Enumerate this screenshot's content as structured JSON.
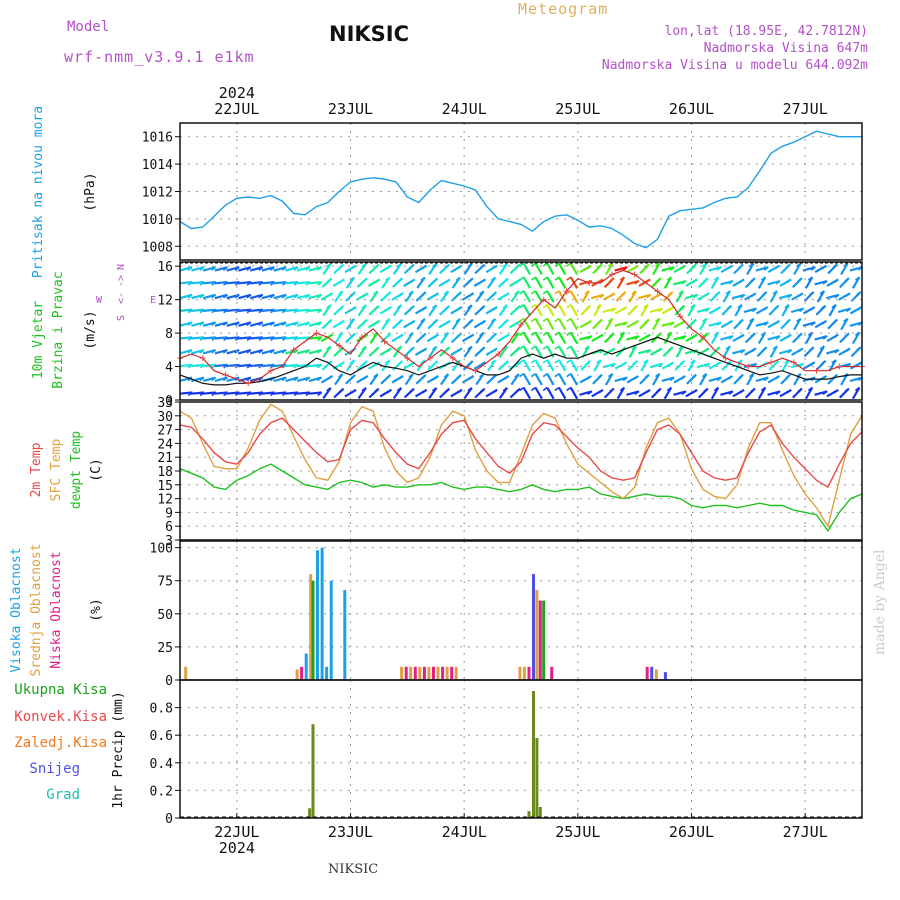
{
  "header": {
    "model_label": "Model",
    "model_name": "wrf-nmm_v3.9.1 e1km",
    "station": "NIKSIC",
    "title": "Meteogram",
    "location_line1": "lon,lat (18.95E, 42.7812N)",
    "location_line2": "Nadmorska Visina 647m",
    "location_line3": "Nadmorska Visina u modelu 644.092m",
    "footer_station": "NIKSIC",
    "signature": "made by Angel"
  },
  "colors": {
    "pressure": "#1ea0e6",
    "wind_label": "#20c020",
    "temp_2m": "#e84a4a",
    "temp_sfc": "#e0a040",
    "dewpoint": "#20c020",
    "cloud_high": "#1ea0e6",
    "cloud_mid": "#e0a040",
    "cloud_low": "#e0208a",
    "precip_total": "#20a020",
    "precip_conv": "#e84a4a",
    "precip_frozen": "#f07a20",
    "snow": "#5050e0",
    "hail": "#20c0b0",
    "axis_label": "#111111",
    "grid": "#999999",
    "purple": "#b450c8"
  },
  "chart_data": [
    {
      "type": "line",
      "name": "pressure",
      "ylabel": "Pritisak na nivou mora",
      "unit": "(hPa)",
      "ylim": [
        1007,
        1017
      ],
      "yticks": [
        1008,
        1010,
        1012,
        1014,
        1016
      ],
      "x": [
        0,
        0.1,
        0.2,
        0.3,
        0.4,
        0.5,
        0.6,
        0.7,
        0.8,
        0.9,
        1.0,
        1.1,
        1.2,
        1.3,
        1.4,
        1.5,
        1.6,
        1.7,
        1.8,
        1.9,
        2.0,
        2.1,
        2.2,
        2.3,
        2.4,
        2.5,
        2.6,
        2.7,
        2.8,
        2.9,
        3.0,
        3.1,
        3.2,
        3.3,
        3.4,
        3.5,
        3.6,
        3.7,
        3.8,
        3.9,
        4.0,
        4.1,
        4.2,
        4.3,
        4.4,
        4.5,
        4.6,
        4.7,
        4.8,
        4.9,
        5.0,
        5.1,
        5.2,
        5.3,
        5.4,
        5.5,
        5.6,
        5.7,
        5.8,
        5.9,
        6.0
      ],
      "values": [
        1009.8,
        1009.3,
        1009.4,
        1010.2,
        1011.0,
        1011.5,
        1011.6,
        1011.5,
        1011.7,
        1011.3,
        1010.4,
        1010.3,
        1010.9,
        1011.2,
        1012.0,
        1012.7,
        1012.9,
        1013.0,
        1012.9,
        1012.7,
        1011.6,
        1011.2,
        1012.1,
        1012.8,
        1012.6,
        1012.4,
        1012.1,
        1010.9,
        1010.0,
        1009.8,
        1009.6,
        1009.1,
        1009.8,
        1010.2,
        1010.3,
        1009.9,
        1009.4,
        1009.5,
        1009.3,
        1008.8,
        1008.2,
        1007.9,
        1008.5,
        1010.2,
        1010.6,
        1010.7,
        1010.8,
        1011.2,
        1011.5,
        1011.6,
        1012.3,
        1013.5,
        1014.8,
        1015.3,
        1015.6,
        1016.0,
        1016.4,
        1016.2,
        1016.0,
        1016.0,
        1016.0
      ]
    },
    {
      "type": "line",
      "name": "wind",
      "ylabel": "10m Vjetar",
      "ylabel2": "Brzina i Pravac",
      "unit": "(m/s)",
      "compass": [
        "N",
        "S",
        "W",
        "E"
      ],
      "ylim": [
        0,
        16.5
      ],
      "yticks": [
        0,
        4,
        8,
        12,
        16
      ],
      "x": [
        0,
        0.1,
        0.2,
        0.3,
        0.4,
        0.5,
        0.6,
        0.7,
        0.8,
        0.9,
        1.0,
        1.1,
        1.2,
        1.3,
        1.4,
        1.5,
        1.6,
        1.7,
        1.8,
        1.9,
        2.0,
        2.1,
        2.2,
        2.3,
        2.4,
        2.5,
        2.6,
        2.7,
        2.8,
        2.9,
        3.0,
        3.1,
        3.2,
        3.3,
        3.4,
        3.5,
        3.6,
        3.7,
        3.8,
        3.9,
        4.0,
        4.1,
        4.2,
        4.3,
        4.4,
        4.5,
        4.6,
        4.7,
        4.8,
        4.9,
        5.0,
        5.1,
        5.2,
        5.3,
        5.4,
        5.5,
        5.6,
        5.7,
        5.8,
        5.9,
        6.0
      ],
      "speed": [
        3.0,
        2.5,
        2.0,
        1.8,
        1.8,
        2.0,
        2.0,
        2.2,
        2.5,
        3.0,
        3.5,
        4.0,
        5.0,
        4.5,
        3.5,
        3.0,
        3.8,
        4.5,
        4.0,
        3.8,
        3.5,
        3.0,
        3.5,
        4.0,
        4.5,
        4.0,
        3.5,
        3.0,
        3.0,
        3.5,
        5.0,
        5.5,
        5.0,
        5.5,
        5.0,
        5.0,
        5.5,
        6.0,
        5.5,
        6.0,
        6.5,
        7.0,
        7.5,
        7.0,
        6.5,
        6.0,
        5.5,
        5.0,
        4.5,
        4.0,
        3.5,
        3.0,
        3.2,
        3.5,
        3.0,
        2.5,
        2.5,
        2.5,
        2.8,
        3.0,
        3.0
      ],
      "gust": [
        5.0,
        5.5,
        5.0,
        3.5,
        3.0,
        2.5,
        2.0,
        2.5,
        3.5,
        4.0,
        6.0,
        7.0,
        8.0,
        7.5,
        6.5,
        5.5,
        7.5,
        8.5,
        7.0,
        6.0,
        5.0,
        4.0,
        5.0,
        6.0,
        5.0,
        4.0,
        3.5,
        4.5,
        5.5,
        7.0,
        9.0,
        10.5,
        12.0,
        11.0,
        13.0,
        14.5,
        14.0,
        14.0,
        15.0,
        15.5,
        15.0,
        14.0,
        13.0,
        12.0,
        10.0,
        8.5,
        7.5,
        6.0,
        5.0,
        4.5,
        4.0,
        4.0,
        4.5,
        5.0,
        4.5,
        3.5,
        3.5,
        3.5,
        4.0,
        4.0,
        4.0
      ]
    },
    {
      "type": "line",
      "name": "temperature",
      "ylabels": [
        "2m Temp",
        "SFC Temp",
        "dewpt Temp"
      ],
      "unit": "(C)",
      "ylim": [
        3,
        33
      ],
      "yticks": [
        3,
        6,
        9,
        12,
        15,
        18,
        21,
        24,
        27,
        30,
        33
      ],
      "x": [
        0,
        0.1,
        0.2,
        0.3,
        0.4,
        0.5,
        0.6,
        0.7,
        0.8,
        0.9,
        1.0,
        1.1,
        1.2,
        1.3,
        1.4,
        1.5,
        1.6,
        1.7,
        1.8,
        1.9,
        2.0,
        2.1,
        2.2,
        2.3,
        2.4,
        2.5,
        2.6,
        2.7,
        2.8,
        2.9,
        3.0,
        3.1,
        3.2,
        3.3,
        3.4,
        3.5,
        3.6,
        3.7,
        3.8,
        3.9,
        4.0,
        4.1,
        4.2,
        4.3,
        4.4,
        4.5,
        4.6,
        4.7,
        4.8,
        4.9,
        5.0,
        5.1,
        5.2,
        5.3,
        5.4,
        5.5,
        5.6,
        5.7,
        5.8,
        5.9,
        6.0
      ],
      "series": [
        {
          "name": "2m Temp",
          "values": [
            28.0,
            27.5,
            25.0,
            22.0,
            20.0,
            19.5,
            22.0,
            26.0,
            28.5,
            29.5,
            27.0,
            24.5,
            22.0,
            20.0,
            20.5,
            27.0,
            29.0,
            28.5,
            25.0,
            22.0,
            19.5,
            18.5,
            22.0,
            26.0,
            28.5,
            29.0,
            25.0,
            22.0,
            19.0,
            17.5,
            20.0,
            26.0,
            28.5,
            28.0,
            25.5,
            23.0,
            21.0,
            18.0,
            16.5,
            16.0,
            16.5,
            22.0,
            27.0,
            28.0,
            26.0,
            22.0,
            18.0,
            16.5,
            16.0,
            16.5,
            22.0,
            26.5,
            28.0,
            24.0,
            21.0,
            18.5,
            16.0,
            14.5,
            19.5,
            24.0,
            26.5
          ]
        },
        {
          "name": "SFC Temp",
          "values": [
            31.0,
            29.5,
            24.0,
            19.0,
            18.5,
            18.5,
            23.0,
            29.0,
            32.5,
            31.0,
            25.5,
            20.5,
            16.5,
            16.0,
            20.0,
            28.5,
            32.0,
            31.0,
            23.0,
            18.0,
            15.5,
            16.5,
            21.0,
            28.0,
            31.0,
            30.0,
            22.5,
            18.0,
            15.5,
            15.5,
            21.5,
            28.0,
            30.5,
            29.5,
            24.0,
            19.5,
            17.5,
            15.5,
            13.5,
            12.0,
            14.5,
            23.0,
            28.5,
            29.5,
            26.0,
            18.5,
            14.0,
            12.5,
            12.0,
            15.0,
            23.0,
            28.5,
            28.5,
            22.5,
            17.0,
            13.0,
            10.0,
            6.0,
            16.0,
            26.0,
            30.0
          ]
        },
        {
          "name": "dewpt Temp",
          "values": [
            18.5,
            17.5,
            16.5,
            14.5,
            14.0,
            16.0,
            17.0,
            18.5,
            19.5,
            18.0,
            16.5,
            15.0,
            14.5,
            14.0,
            15.5,
            16.0,
            15.5,
            14.5,
            15.0,
            14.5,
            14.5,
            15.0,
            15.0,
            15.5,
            14.5,
            14.0,
            14.5,
            14.5,
            14.0,
            13.5,
            14.0,
            15.0,
            14.0,
            13.5,
            14.0,
            14.0,
            14.5,
            13.0,
            12.5,
            12.0,
            12.5,
            13.0,
            12.5,
            12.5,
            12.0,
            10.5,
            10.0,
            10.5,
            10.5,
            10.0,
            10.5,
            11.0,
            10.5,
            10.5,
            9.5,
            9.0,
            8.5,
            5.0,
            9.0,
            12.0,
            13.0
          ]
        }
      ]
    },
    {
      "type": "bar",
      "name": "cloud",
      "ylabels": [
        "Visoka Oblacnost",
        "Srednja Oblacnost",
        "Niska Oblacnost"
      ],
      "unit": "(%)",
      "ylim": [
        0,
        105
      ],
      "yticks": [
        0,
        25,
        50,
        75,
        100
      ],
      "bars": [
        {
          "x": 0.05,
          "layer": "mid",
          "value": 10
        },
        {
          "x": 1.03,
          "layer": "mid",
          "value": 8
        },
        {
          "x": 1.07,
          "layer": "low",
          "value": 10
        },
        {
          "x": 1.11,
          "layer": "high",
          "value": 20
        },
        {
          "x": 1.15,
          "layer": "mid",
          "value": 80
        },
        {
          "x": 1.17,
          "layer": "precip",
          "value": 75
        },
        {
          "x": 1.21,
          "layer": "high",
          "value": 98
        },
        {
          "x": 1.25,
          "layer": "high",
          "value": 100
        },
        {
          "x": 1.29,
          "layer": "high",
          "value": 10
        },
        {
          "x": 1.33,
          "layer": "high",
          "value": 75
        },
        {
          "x": 1.45,
          "layer": "high",
          "value": 68
        },
        {
          "x": 1.95,
          "layer": "mid",
          "value": 10
        },
        {
          "x": 1.99,
          "layer": "low",
          "value": 10
        },
        {
          "x": 2.03,
          "layer": "mid",
          "value": 10
        },
        {
          "x": 2.07,
          "layer": "low",
          "value": 10
        },
        {
          "x": 2.11,
          "layer": "mid",
          "value": 10
        },
        {
          "x": 2.15,
          "layer": "low",
          "value": 10
        },
        {
          "x": 2.19,
          "layer": "mid",
          "value": 10
        },
        {
          "x": 2.23,
          "layer": "low",
          "value": 10
        },
        {
          "x": 2.27,
          "layer": "mid",
          "value": 10
        },
        {
          "x": 2.31,
          "layer": "low",
          "value": 10
        },
        {
          "x": 2.35,
          "layer": "mid",
          "value": 10
        },
        {
          "x": 2.39,
          "layer": "low",
          "value": 10
        },
        {
          "x": 2.43,
          "layer": "mid",
          "value": 10
        },
        {
          "x": 2.99,
          "layer": "mid",
          "value": 10
        },
        {
          "x": 3.03,
          "layer": "mid",
          "value": 10
        },
        {
          "x": 3.07,
          "layer": "low",
          "value": 10
        },
        {
          "x": 3.11,
          "layer": "snow",
          "value": 80
        },
        {
          "x": 3.14,
          "layer": "mid",
          "value": 68
        },
        {
          "x": 3.17,
          "layer": "low",
          "value": 60
        },
        {
          "x": 3.2,
          "layer": "precip",
          "value": 60
        },
        {
          "x": 3.27,
          "layer": "low",
          "value": 10
        },
        {
          "x": 4.11,
          "layer": "low",
          "value": 10
        },
        {
          "x": 4.15,
          "layer": "snow",
          "value": 10
        },
        {
          "x": 4.19,
          "layer": "mid",
          "value": 8
        },
        {
          "x": 4.27,
          "layer": "snow",
          "value": 6
        }
      ]
    },
    {
      "type": "bar",
      "name": "precipitation",
      "ylabels": [
        "Ukupna Kisa",
        "Konvek.Kisa",
        "Zaledj.Kisa",
        "Snijeg",
        "Grad"
      ],
      "ylabel": "1hr Precip (mm)",
      "ylim": [
        0,
        1.0
      ],
      "yticks": [
        0,
        0.2,
        0.4,
        0.6,
        0.8
      ],
      "bars": [
        {
          "x": 1.14,
          "value": 0.07
        },
        {
          "x": 1.17,
          "value": 0.68
        },
        {
          "x": 3.07,
          "value": 0.05
        },
        {
          "x": 3.11,
          "value": 0.92
        },
        {
          "x": 3.14,
          "value": 0.58
        },
        {
          "x": 3.17,
          "value": 0.08
        }
      ]
    }
  ],
  "x_axis": {
    "year": "2024",
    "day_labels": [
      "22JUL",
      "23JUL",
      "24JUL",
      "25JUL",
      "26JUL",
      "27JUL"
    ],
    "day_positions": [
      0.5,
      1.5,
      2.5,
      3.5,
      4.5,
      5.5
    ]
  }
}
